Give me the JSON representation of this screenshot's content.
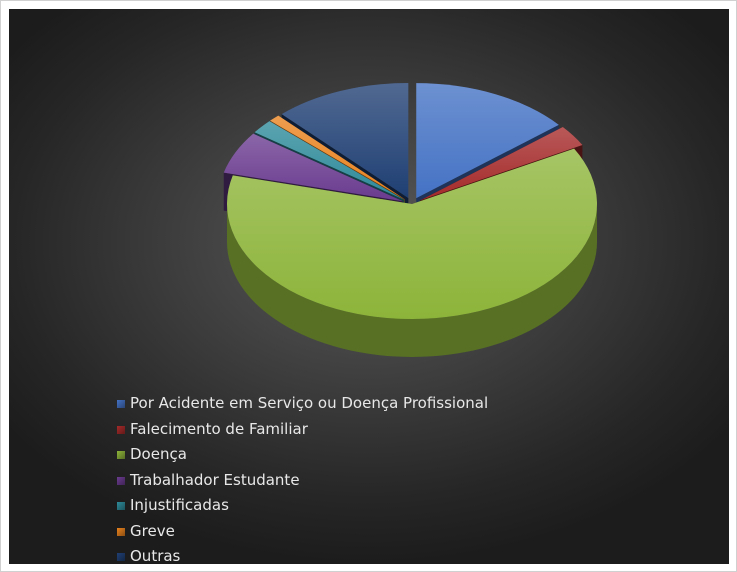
{
  "chart_data": {
    "type": "pie",
    "title": "",
    "categories": [
      "Por Acidente em Serviço ou Doença Profissional",
      "Falecimento de Familiar",
      "Doença",
      "Trabalhador Estudante",
      "Injustificadas",
      "Greve",
      "Outras"
    ],
    "values": [
      14,
      3,
      62,
      6,
      2,
      1,
      12
    ],
    "exploded": [
      true,
      true,
      false,
      true,
      true,
      true,
      true
    ],
    "style": "3d",
    "legend_position": "bottom-left",
    "colors": [
      "#4472C4",
      "#A52A2A",
      "#8DB43A",
      "#6A3B8F",
      "#2E8A9A",
      "#E8821E",
      "#1F3F73"
    ]
  }
}
